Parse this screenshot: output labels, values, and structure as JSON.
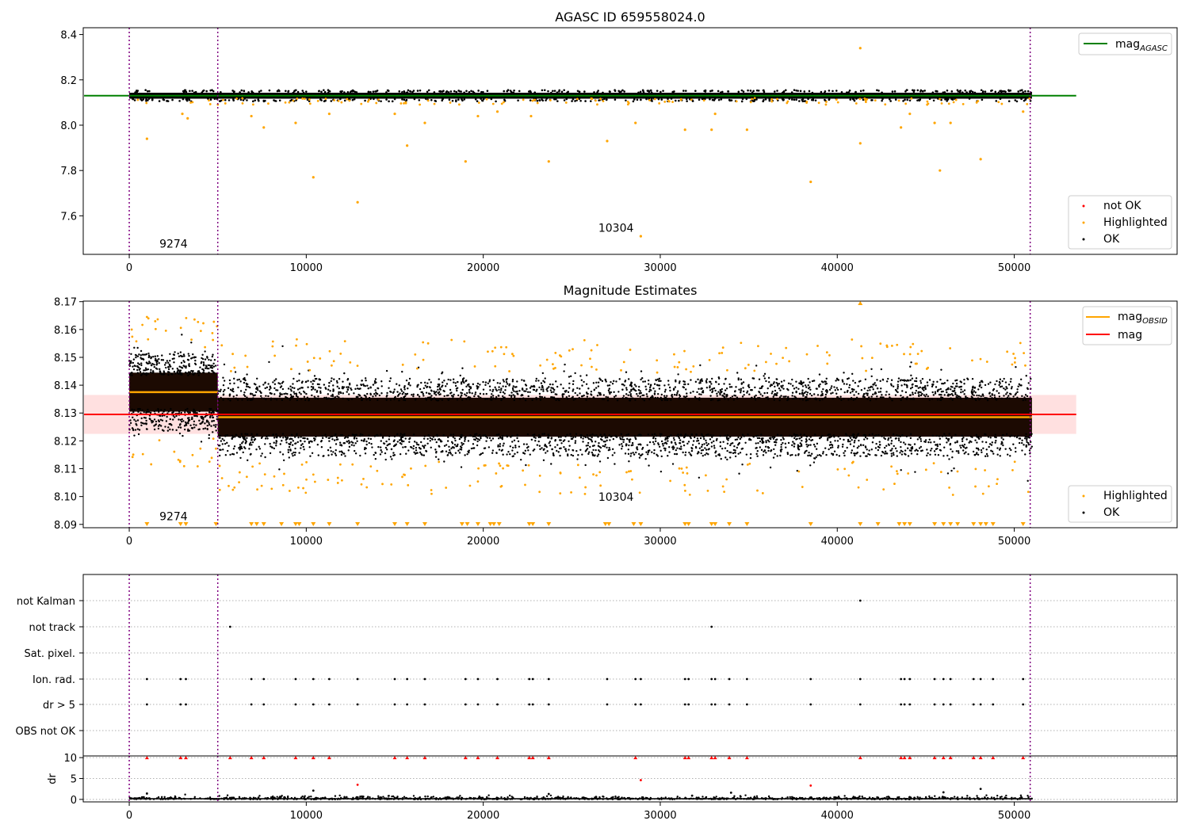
{
  "chart_data": [
    {
      "type": "scatter",
      "title": "AGASC ID 659558024.0",
      "xlim": [
        -2600,
        59200
      ],
      "ylim": [
        7.43,
        8.43
      ],
      "xticks": [
        0,
        10000,
        20000,
        30000,
        40000,
        50000
      ],
      "yticks": [
        "7.6",
        "7.8",
        "8.0",
        "8.2",
        "8.4"
      ],
      "obsid_boundaries": [
        0,
        5000,
        50900
      ],
      "annotations": [
        {
          "text": "9274",
          "x": 2500,
          "y": 7.46
        },
        {
          "text": "10304",
          "x": 27500,
          "y": 7.53
        }
      ],
      "ok_band": {
        "x_start": 0,
        "x_end": 51000,
        "center": 8.13,
        "half_width": 0.013
      },
      "agasc_mag": 8.13,
      "highlighted_points": [
        {
          "x": 1000,
          "y": 7.94
        },
        {
          "x": 3300,
          "y": 8.03
        },
        {
          "x": 3000,
          "y": 8.05
        },
        {
          "x": 6900,
          "y": 8.04
        },
        {
          "x": 7600,
          "y": 7.99
        },
        {
          "x": 9400,
          "y": 8.01
        },
        {
          "x": 10400,
          "y": 7.77
        },
        {
          "x": 11300,
          "y": 8.05
        },
        {
          "x": 12900,
          "y": 7.66
        },
        {
          "x": 15000,
          "y": 8.05
        },
        {
          "x": 15700,
          "y": 7.91
        },
        {
          "x": 16700,
          "y": 8.01
        },
        {
          "x": 19000,
          "y": 7.84
        },
        {
          "x": 19700,
          "y": 8.04
        },
        {
          "x": 20800,
          "y": 8.06
        },
        {
          "x": 22700,
          "y": 8.04
        },
        {
          "x": 23700,
          "y": 7.84
        },
        {
          "x": 27000,
          "y": 7.93
        },
        {
          "x": 28600,
          "y": 8.01
        },
        {
          "x": 28900,
          "y": 7.51
        },
        {
          "x": 31400,
          "y": 7.98
        },
        {
          "x": 32900,
          "y": 7.98
        },
        {
          "x": 33100,
          "y": 8.05
        },
        {
          "x": 34900,
          "y": 7.98
        },
        {
          "x": 38500,
          "y": 7.75
        },
        {
          "x": 41300,
          "y": 8.34
        },
        {
          "x": 41300,
          "y": 7.92
        },
        {
          "x": 43600,
          "y": 7.99
        },
        {
          "x": 44100,
          "y": 8.05
        },
        {
          "x": 45800,
          "y": 7.8
        },
        {
          "x": 45500,
          "y": 8.01
        },
        {
          "x": 46400,
          "y": 8.01
        },
        {
          "x": 48100,
          "y": 7.85
        },
        {
          "x": 50500,
          "y": 8.06
        }
      ],
      "legend_top": [
        {
          "label": "mag",
          "subscript": "AGASC",
          "color": "#008000"
        }
      ],
      "legend_bottom": [
        {
          "label": "not OK",
          "color": "#ff0000"
        },
        {
          "label": "Highlighted",
          "color": "#ffa500"
        },
        {
          "label": "OK",
          "color": "#000000"
        }
      ]
    },
    {
      "type": "scatter",
      "title": "Magnitude Estimates",
      "xlim": [
        -2600,
        59200
      ],
      "ylim": [
        8.0888,
        8.1702
      ],
      "xticks": [
        0,
        10000,
        20000,
        30000,
        40000,
        50000
      ],
      "yticks": [
        "8.09",
        "8.10",
        "8.11",
        "8.12",
        "8.13",
        "8.14",
        "8.15",
        "8.16",
        "8.17"
      ],
      "obsid_boundaries": [
        0,
        5000,
        50900
      ],
      "annotations": [
        {
          "text": "9274",
          "x": 2500,
          "y": 8.0915
        },
        {
          "text": "10304",
          "x": 27500,
          "y": 8.0985
        }
      ],
      "mag": 8.1295,
      "mag_band": [
        8.1225,
        8.1365
      ],
      "obsid_segments": [
        {
          "x_start": 0,
          "x_end": 5000,
          "mag": 8.1375,
          "band": [
            8.1305,
            8.1445
          ]
        },
        {
          "x_start": 5000,
          "x_end": 51000,
          "mag": 8.1285,
          "band": [
            8.1215,
            8.1355
          ]
        }
      ],
      "clipped_marker_x": [
        1000,
        2900,
        3200,
        4900,
        6900,
        7200,
        7600,
        8600,
        9400,
        9600,
        10400,
        11300,
        12900,
        15000,
        15700,
        16700,
        18800,
        19100,
        19700,
        20400,
        20600,
        20900,
        22600,
        22800,
        23700,
        26900,
        27100,
        28500,
        28900,
        31400,
        31600,
        32900,
        33100,
        33900,
        34900,
        38500,
        41300,
        42300,
        43500,
        43800,
        44100,
        45500,
        46000,
        46400,
        46800,
        47700,
        48100,
        48400,
        48800,
        50500
      ],
      "legend_top": [
        {
          "label": "mag",
          "subscript": "OBSID",
          "color": "#ffa500"
        },
        {
          "label": "mag",
          "subscript": "",
          "color": "#ff0000"
        }
      ],
      "legend_bottom": [
        {
          "label": "Highlighted",
          "color": "#ffa500"
        },
        {
          "label": "OK",
          "color": "#000000"
        }
      ]
    },
    {
      "type": "scatter",
      "title": "",
      "xlim": [
        -2600,
        59200
      ],
      "flag_categories": [
        "not Kalman",
        "not track",
        "Sat. pixel.",
        "Ion. rad.",
        "dr > 5",
        "OBS not OK"
      ],
      "flag_points": {
        "not Kalman": [
          41300
        ],
        "not track": [
          5700,
          32900
        ],
        "Sat. pixel.": [],
        "Ion. rad.": [
          1000,
          2900,
          3200,
          6900,
          7600,
          9400,
          10400,
          11300,
          12900,
          15000,
          15700,
          16700,
          19000,
          19700,
          20800,
          22600,
          22800,
          23700,
          27000,
          28600,
          28900,
          31400,
          31600,
          32900,
          33100,
          33900,
          34900,
          38500,
          41300,
          43600,
          43800,
          44100,
          45500,
          46000,
          46400,
          47700,
          48100,
          48800,
          50500
        ],
        "dr > 5": [
          1000,
          2900,
          3200,
          6900,
          7600,
          9400,
          10400,
          11300,
          12900,
          15000,
          15700,
          16700,
          19000,
          19700,
          20800,
          22600,
          22800,
          23700,
          27000,
          28600,
          28900,
          31400,
          31600,
          32900,
          33100,
          33900,
          34900,
          38500,
          41300,
          43600,
          43800,
          44100,
          45500,
          46000,
          46400,
          47700,
          48100,
          48800,
          50500
        ],
        "OBS not OK": []
      },
      "obsid_boundaries": [
        0,
        5000,
        50900
      ]
    },
    {
      "type": "scatter",
      "title": "",
      "ylabel": "dr",
      "xlim": [
        -2600,
        59200
      ],
      "ylim": [
        -0.6,
        10.4
      ],
      "xticks": [
        0,
        10000,
        20000,
        30000,
        40000,
        50000
      ],
      "yticks": [
        "0",
        "5",
        "10"
      ],
      "obsid_boundaries": [
        0,
        5000,
        50900
      ],
      "clipped_marker_x": [
        1000,
        2900,
        3200,
        5700,
        6900,
        7600,
        9400,
        10400,
        11300,
        15000,
        15700,
        16700,
        19000,
        19700,
        20800,
        22600,
        22800,
        23700,
        28600,
        31400,
        31600,
        32900,
        33100,
        33900,
        34900,
        41300,
        43600,
        43800,
        44100,
        45500,
        46000,
        46400,
        47700,
        48100,
        48800,
        50500
      ],
      "dr_outliers": [
        {
          "x": 1000,
          "y": 1.4,
          "bad": false
        },
        {
          "x": 10400,
          "y": 2.1,
          "bad": false
        },
        {
          "x": 12900,
          "y": 3.5,
          "bad": true
        },
        {
          "x": 28900,
          "y": 4.6,
          "bad": true
        },
        {
          "x": 23700,
          "y": 1.3,
          "bad": false
        },
        {
          "x": 34000,
          "y": 1.6,
          "bad": false
        },
        {
          "x": 38500,
          "y": 3.3,
          "bad": true
        },
        {
          "x": 46000,
          "y": 1.7,
          "bad": false
        },
        {
          "x": 48100,
          "y": 2.5,
          "bad": false
        },
        {
          "x": 31800,
          "y": 0.9,
          "bad": false
        }
      ]
    }
  ]
}
